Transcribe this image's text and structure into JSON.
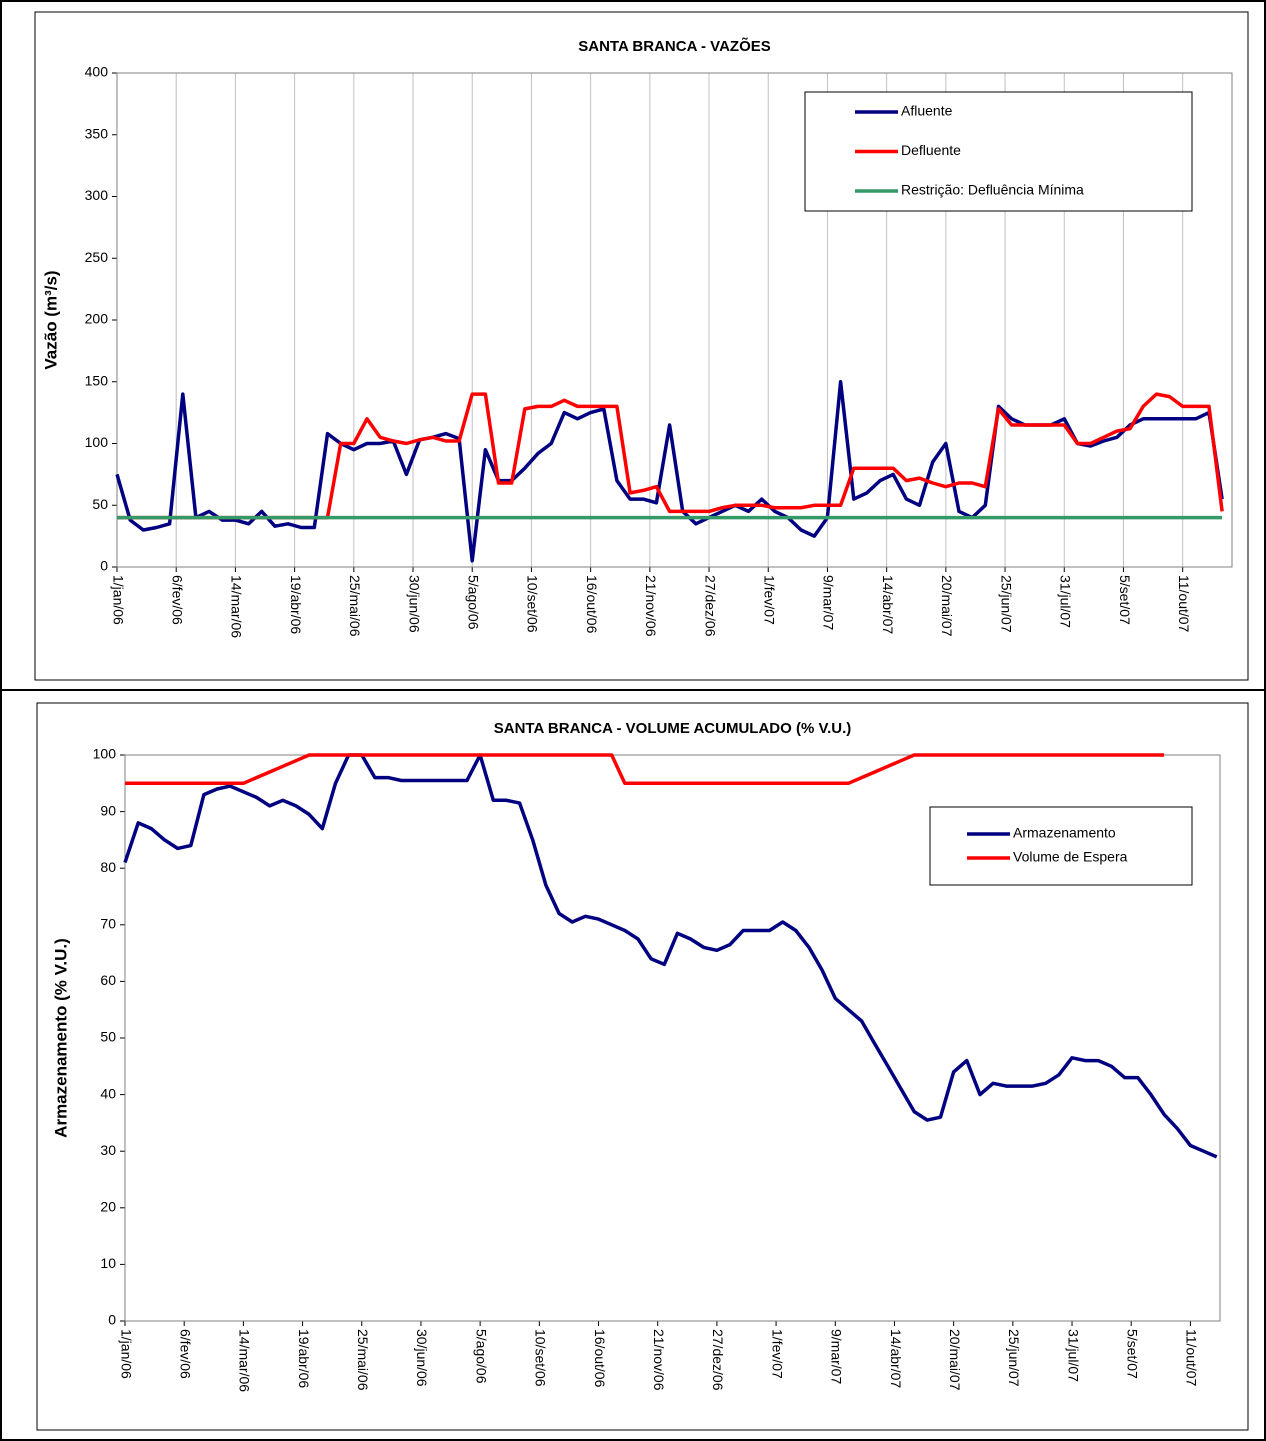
{
  "chart_data": [
    {
      "type": "line",
      "title": "SANTA BRANCA - VAZÕES",
      "y_label": "Vazão (m³/s)",
      "x": [
        0,
        8,
        16,
        24,
        32,
        40,
        48,
        56,
        64,
        72,
        80,
        88,
        96,
        104,
        112,
        120,
        128,
        136,
        144,
        152,
        160,
        168,
        176,
        184,
        192,
        200,
        208,
        216,
        224,
        232,
        240,
        248,
        256,
        264,
        272,
        280,
        288,
        296,
        304,
        312,
        320,
        328,
        336,
        344,
        352,
        360,
        368,
        376,
        384,
        392,
        400,
        408,
        416,
        424,
        432,
        440,
        448,
        456,
        464,
        472,
        480,
        488,
        496,
        504,
        512,
        520,
        528,
        536,
        544,
        552,
        560,
        568,
        576,
        584,
        592,
        600,
        608,
        616,
        624,
        632,
        640,
        648,
        656,
        664,
        672
      ],
      "xlim": [
        0,
        678
      ],
      "xticks": [
        {
          "value": 0,
          "label": "1/jan/06"
        },
        {
          "value": 36,
          "label": "6/fev/06"
        },
        {
          "value": 72,
          "label": "14/mar/06"
        },
        {
          "value": 108,
          "label": "19/abr/06"
        },
        {
          "value": 144,
          "label": "25/mai/06"
        },
        {
          "value": 180,
          "label": "30/jun/06"
        },
        {
          "value": 216,
          "label": "5/ago/06"
        },
        {
          "value": 252,
          "label": "10/set/06"
        },
        {
          "value": 288,
          "label": "16/out/06"
        },
        {
          "value": 324,
          "label": "21/nov/06"
        },
        {
          "value": 360,
          "label": "27/dez/06"
        },
        {
          "value": 396,
          "label": "1/fev/07"
        },
        {
          "value": 432,
          "label": "9/mar/07"
        },
        {
          "value": 468,
          "label": "14/abr/07"
        },
        {
          "value": 504,
          "label": "20/mai/07"
        },
        {
          "value": 540,
          "label": "25/jun/07"
        },
        {
          "value": 576,
          "label": "31/jul/07"
        },
        {
          "value": 612,
          "label": "5/set/07"
        },
        {
          "value": 648,
          "label": "11/out/07"
        }
      ],
      "ylim": [
        0,
        400
      ],
      "yticks": [
        0,
        50,
        100,
        150,
        200,
        250,
        300,
        350,
        400
      ],
      "grid": "x",
      "legend": "upper right",
      "series": [
        {
          "name": "Afluente",
          "color": "#000080",
          "values": [
            75,
            38,
            30,
            32,
            35,
            140,
            40,
            45,
            38,
            38,
            35,
            45,
            33,
            35,
            32,
            32,
            108,
            100,
            95,
            100,
            100,
            102,
            75,
            103,
            105,
            108,
            104,
            5,
            95,
            70,
            70,
            80,
            92,
            100,
            125,
            120,
            125,
            128,
            70,
            55,
            55,
            52,
            115,
            45,
            35,
            40,
            45,
            50,
            45,
            55,
            45,
            40,
            30,
            25,
            40,
            150,
            55,
            60,
            70,
            75,
            55,
            50,
            85,
            100,
            45,
            40,
            50,
            130,
            120,
            115,
            115,
            115,
            120,
            100,
            98,
            102,
            105,
            115,
            120,
            120,
            120,
            120,
            120,
            125,
            55
          ]
        },
        {
          "name": "Defluente",
          "color": "#ff0000",
          "values": [
            40,
            40,
            40,
            40,
            40,
            40,
            40,
            40,
            40,
            40,
            40,
            40,
            40,
            40,
            40,
            40,
            40,
            100,
            100,
            120,
            105,
            102,
            100,
            103,
            105,
            102,
            102,
            140,
            140,
            68,
            68,
            128,
            130,
            130,
            135,
            130,
            130,
            130,
            130,
            60,
            62,
            65,
            45,
            45,
            45,
            45,
            48,
            50,
            50,
            50,
            48,
            48,
            48,
            50,
            50,
            50,
            80,
            80,
            80,
            80,
            70,
            72,
            68,
            65,
            68,
            68,
            65,
            128,
            115,
            115,
            115,
            115,
            115,
            100,
            100,
            105,
            110,
            112,
            130,
            140,
            138,
            130,
            130,
            130,
            45
          ]
        },
        {
          "name": "Restrição: Defluência Mínima",
          "color": "#339966",
          "values": [
            40,
            40,
            40,
            40,
            40,
            40,
            40,
            40,
            40,
            40,
            40,
            40,
            40,
            40,
            40,
            40,
            40,
            40,
            40,
            40,
            40,
            40,
            40,
            40,
            40,
            40,
            40,
            40,
            40,
            40,
            40,
            40,
            40,
            40,
            40,
            40,
            40,
            40,
            40,
            40,
            40,
            40,
            40,
            40,
            40,
            40,
            40,
            40,
            40,
            40,
            40,
            40,
            40,
            40,
            40,
            40,
            40,
            40,
            40,
            40,
            40,
            40,
            40,
            40,
            40,
            40,
            40,
            40,
            40,
            40,
            40,
            40,
            40,
            40,
            40,
            40,
            40,
            40,
            40,
            40,
            40,
            40,
            40,
            40,
            40
          ]
        }
      ]
    },
    {
      "type": "line",
      "title": "SANTA BRANCA - VOLUME ACUMULADO (% V.U.)",
      "y_label": "Armazenamento (% V.U.)",
      "x": [
        0,
        8,
        16,
        24,
        32,
        40,
        48,
        56,
        64,
        72,
        80,
        88,
        96,
        104,
        112,
        120,
        128,
        136,
        144,
        152,
        160,
        168,
        176,
        184,
        192,
        200,
        208,
        216,
        224,
        232,
        240,
        248,
        256,
        264,
        272,
        280,
        288,
        296,
        304,
        312,
        320,
        328,
        336,
        344,
        352,
        360,
        368,
        376,
        384,
        392,
        400,
        408,
        416,
        424,
        432,
        440,
        448,
        456,
        464,
        472,
        480,
        488,
        496,
        504,
        512,
        520,
        528,
        536,
        544,
        552,
        560,
        568,
        576,
        584,
        592,
        600,
        608,
        616,
        624,
        632,
        640,
        648,
        656,
        664
      ],
      "xlim": [
        0,
        666
      ],
      "xticks": [
        {
          "value": 0,
          "label": "1/jan/06"
        },
        {
          "value": 36,
          "label": "6/fev/06"
        },
        {
          "value": 72,
          "label": "14/mar/06"
        },
        {
          "value": 108,
          "label": "19/abr/06"
        },
        {
          "value": 144,
          "label": "25/mai/06"
        },
        {
          "value": 180,
          "label": "30/jun/06"
        },
        {
          "value": 216,
          "label": "5/ago/06"
        },
        {
          "value": 252,
          "label": "10/set/06"
        },
        {
          "value": 288,
          "label": "16/out/06"
        },
        {
          "value": 324,
          "label": "21/nov/06"
        },
        {
          "value": 360,
          "label": "27/dez/06"
        },
        {
          "value": 396,
          "label": "1/fev/07"
        },
        {
          "value": 432,
          "label": "9/mar/07"
        },
        {
          "value": 468,
          "label": "14/abr/07"
        },
        {
          "value": 504,
          "label": "20/mai/07"
        },
        {
          "value": 540,
          "label": "25/jun/07"
        },
        {
          "value": 576,
          "label": "31/jul/07"
        },
        {
          "value": 612,
          "label": "5/set/07"
        },
        {
          "value": 648,
          "label": "11/out/07"
        }
      ],
      "ylim": [
        0,
        100
      ],
      "yticks": [
        0,
        10,
        20,
        30,
        40,
        50,
        60,
        70,
        80,
        90,
        100
      ],
      "grid": false,
      "legend": "upper right",
      "series": [
        {
          "name": "Armazenamento",
          "color": "#000080",
          "values": [
            81,
            88,
            87,
            85,
            83.5,
            84,
            93,
            94,
            94.5,
            93.5,
            92.5,
            91,
            92,
            91,
            89.5,
            87,
            95,
            100,
            100,
            96,
            96,
            95.5,
            95.5,
            95.5,
            95.5,
            95.5,
            95.5,
            100,
            92,
            92,
            91.5,
            85,
            77,
            72,
            70.5,
            71.5,
            71,
            70,
            69,
            67.5,
            64,
            63,
            68.5,
            67.5,
            66,
            65.5,
            66.5,
            69,
            69,
            69,
            70.5,
            69,
            66,
            62,
            57,
            55,
            53,
            49,
            45,
            41,
            37,
            35.5,
            36,
            44,
            46,
            40,
            42,
            41.5,
            41.5,
            41.5,
            42,
            43.5,
            46.5,
            46,
            46,
            45,
            43,
            43,
            40,
            36.5,
            34,
            31,
            30,
            29
          ]
        },
        {
          "name": "Volume de Espera",
          "color": "#ff0000",
          "values": [
            95,
            95,
            95,
            95,
            95,
            95,
            95,
            95,
            95,
            95,
            96,
            97,
            98,
            99,
            100,
            100,
            100,
            100,
            100,
            100,
            100,
            100,
            100,
            100,
            100,
            100,
            100,
            100,
            100,
            100,
            100,
            100,
            100,
            100,
            100,
            100,
            100,
            100,
            95,
            95,
            95,
            95,
            95,
            95,
            95,
            95,
            95,
            95,
            95,
            95,
            95,
            95,
            95,
            95,
            95,
            95,
            96,
            97,
            98,
            99,
            100,
            100,
            100,
            100,
            100,
            100,
            100,
            100,
            100,
            100,
            100,
            100,
            100,
            100,
            100,
            100,
            100,
            100,
            100,
            100,
            null,
            null,
            null,
            null
          ]
        }
      ]
    }
  ]
}
